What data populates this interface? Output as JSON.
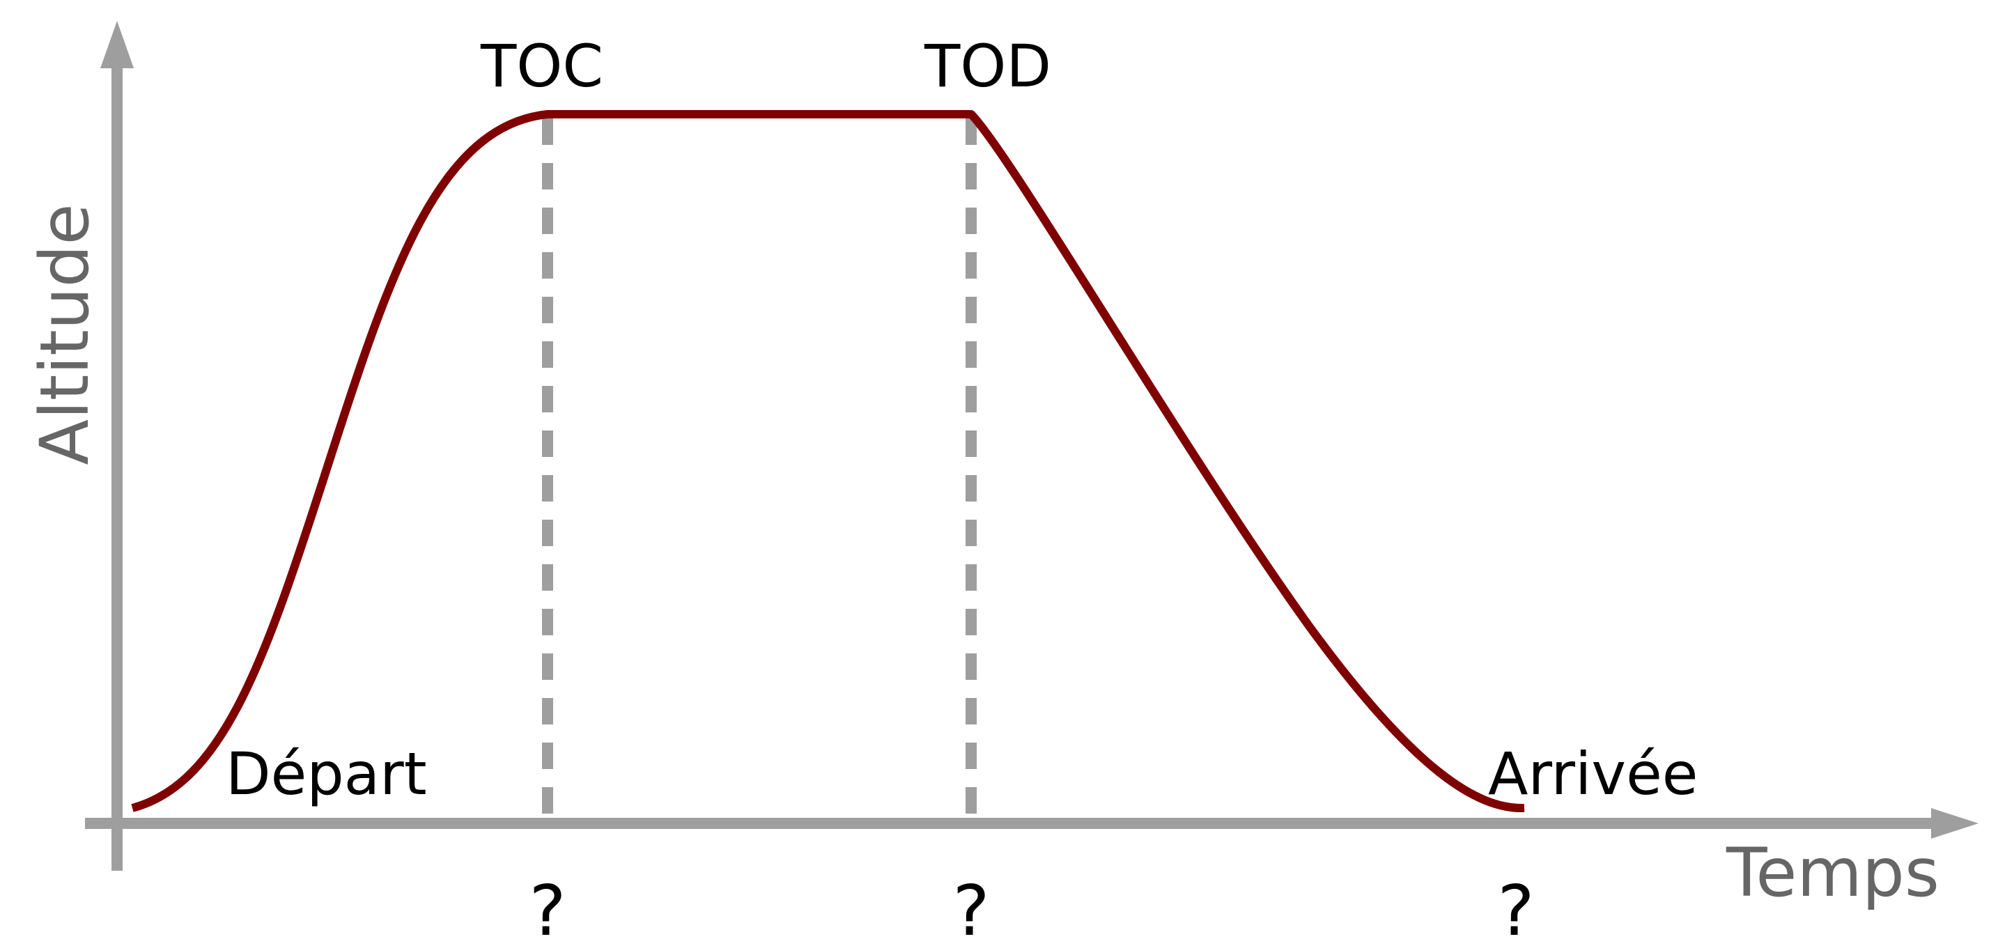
{
  "axes": {
    "x_label": "Temps",
    "y_label": "Altitude"
  },
  "phases": {
    "toc": "TOC",
    "tod": "TOD",
    "departure": "Départ",
    "arrival": "Arrivée"
  },
  "markers": {
    "toc_time": "?",
    "tod_time": "?",
    "arrival_time": "?"
  },
  "colors": {
    "profile": "#7f0000",
    "axis": "#9e9e9e",
    "axis_label": "#666666"
  }
}
